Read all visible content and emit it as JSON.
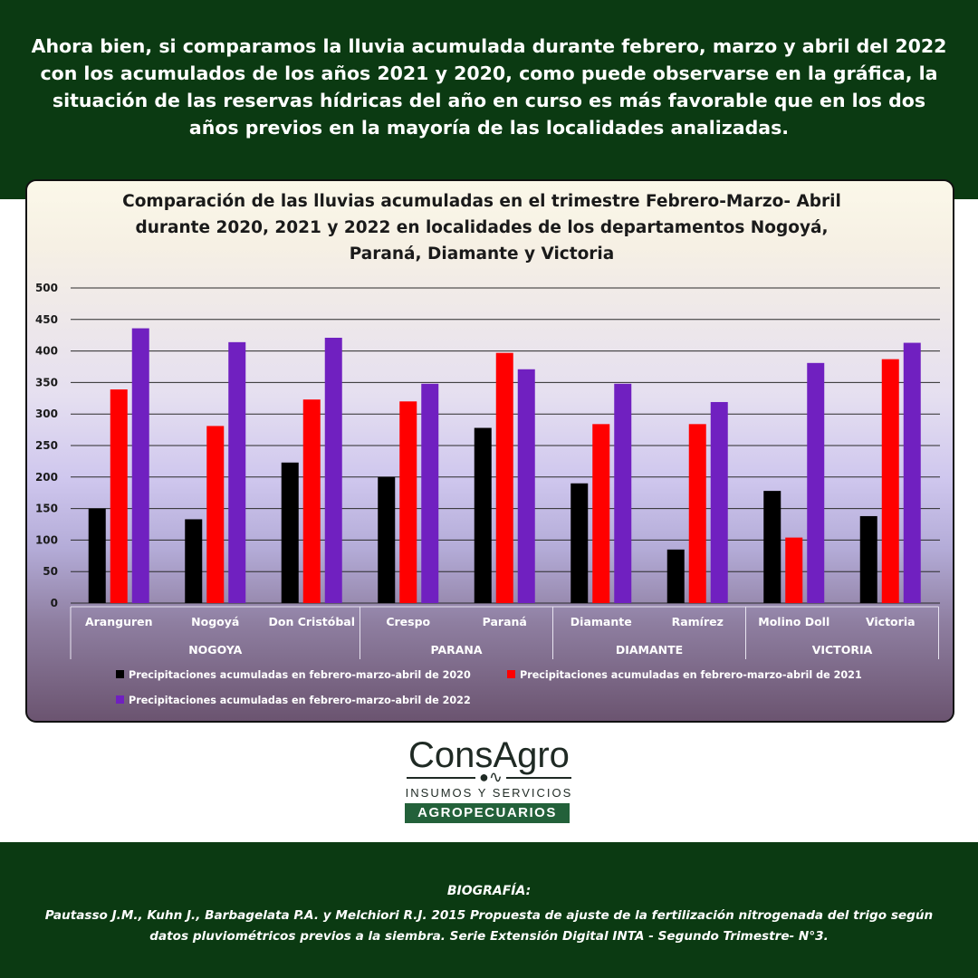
{
  "intro_text": "Ahora bien, si comparamos la lluvia acumulada durante febrero, marzo y abril del 2022 con los acumulados de los años 2021 y 2020, como puede observarse en la gráfica, la situación de las reservas hídricas del año en curso es más favorable que en los dos años previos en la mayoría de las localidades analizadas.",
  "chart_data": {
    "type": "bar",
    "title_lines": [
      "Comparación de las lluvias acumuladas en el trimestre Febrero-Marzo- Abril",
      "durante 2020, 2021 y 2022 en localidades de los departamentos Nogoyá,",
      "Paraná, Diamante y Victoria"
    ],
    "categories": [
      "Aranguren",
      "Nogoyá",
      "Don Cristóbal",
      "Crespo",
      "Paraná",
      "Diamante",
      "Ramírez",
      "Molino Doll",
      "Victoria"
    ],
    "groups": [
      {
        "name": "NOGOYA",
        "count": 3
      },
      {
        "name": "PARANA",
        "count": 2
      },
      {
        "name": "DIAMANTE",
        "count": 2
      },
      {
        "name": "VICTORIA",
        "count": 2
      }
    ],
    "series": [
      {
        "name": "Precipitaciones acumuladas en febrero-marzo-abril de 2020",
        "color": "#000000",
        "values": [
          150,
          133,
          223,
          200,
          278,
          190,
          85,
          178,
          138
        ]
      },
      {
        "name": "Precipitaciones acumuladas en febrero-marzo-abril de 2021",
        "color": "#ff0000",
        "values": [
          339,
          281,
          323,
          320,
          397,
          284,
          284,
          104,
          387
        ]
      },
      {
        "name": "Precipitaciones acumuladas en febrero-marzo-abril de 2022",
        "color": "#7020c0",
        "values": [
          436,
          414,
          421,
          348,
          371,
          348,
          319,
          381,
          413
        ]
      }
    ],
    "ylim": [
      0,
      500
    ],
    "yticks": [
      0,
      50,
      100,
      150,
      200,
      250,
      300,
      350,
      400,
      450,
      500
    ],
    "grid": true,
    "legend_position": "bottom"
  },
  "logo": {
    "brand_first": "Cons",
    "brand_second": "Agro",
    "tagline": "INSUMOS Y SERVICIOS",
    "bar_text": "AGROPECUARIOS"
  },
  "bibliography": {
    "title": "BIOGRAFÍA:",
    "text": "Pautasso J.M., Kuhn J., Barbagelata P.A. y Melchiori R.J. 2015 Propuesta de ajuste de la fertilización nitrogenada del trigo según datos pluviométricos previos a la siembra. Serie Extensión Digital INTA - Segundo Trimestre- N°3."
  }
}
